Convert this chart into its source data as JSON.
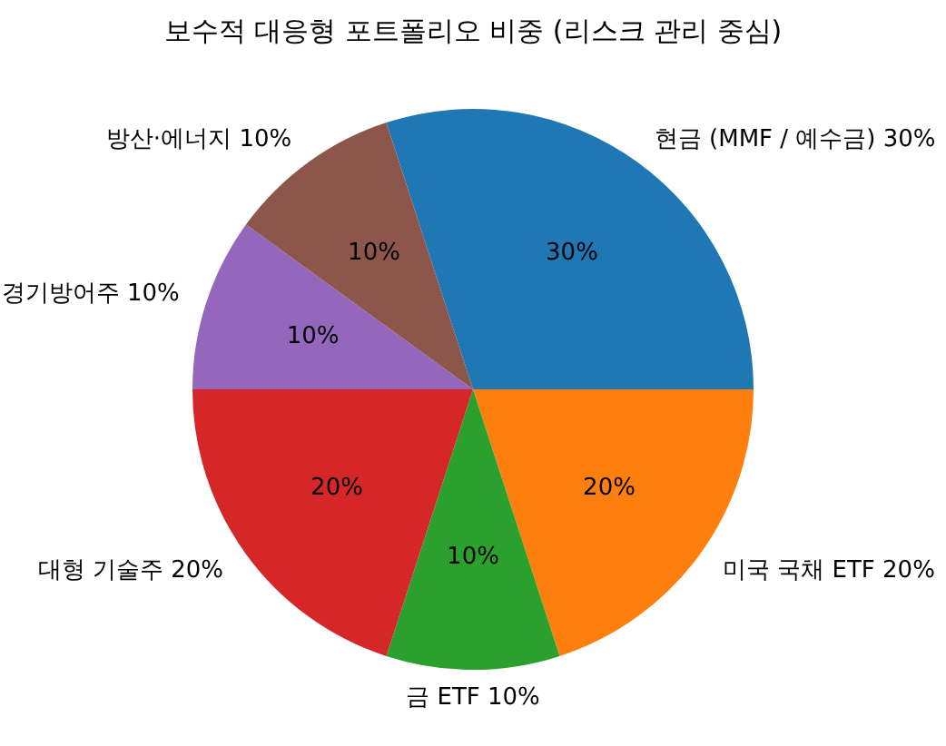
{
  "chart_data": {
    "type": "pie",
    "title": "보수적 대응형 포트폴리오 비중 (리스크 관리 중심)",
    "categories": [
      "현금 (MMF / 예수금) 30%",
      "미국 국채 ETF 20%",
      "금 ETF 10%",
      "대형 기술주 20%",
      "경기방어주 10%",
      "방산·에너지 10%"
    ],
    "values": [
      30,
      20,
      10,
      20,
      10,
      10
    ],
    "value_labels": [
      "30%",
      "20%",
      "10%",
      "20%",
      "10%",
      "10%"
    ],
    "colors": [
      "#1f77b4",
      "#ff7f0e",
      "#2ca02c",
      "#d62728",
      "#9467bd",
      "#8c564b"
    ],
    "legend": false
  }
}
